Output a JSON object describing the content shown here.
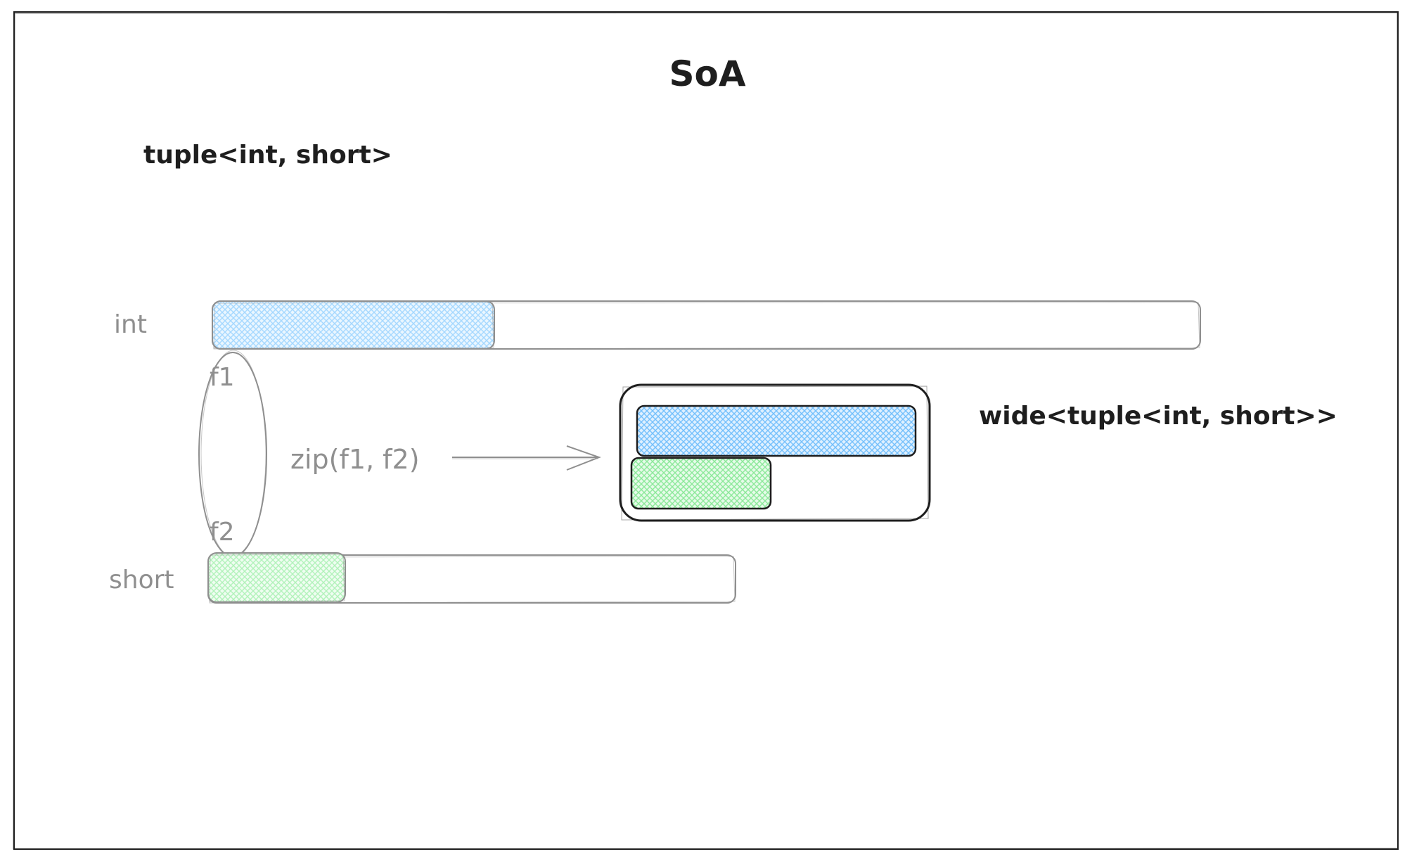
{
  "title": "SoA",
  "tuple_type_label": "tuple<int, short>",
  "int_row": {
    "label": "int",
    "field_label": "f1",
    "fill_color": "#a5d8ff"
  },
  "short_row": {
    "label": "short",
    "field_label": "f2",
    "fill_color": "#b2f2bb"
  },
  "zip_label": "zip(f1, f2)",
  "wide_label": "wide<tuple<int, short>>",
  "colors": {
    "ink": "#1e1e1e",
    "muted_ink": "#8f8f8f",
    "int_fill": "#a5d8ff",
    "short_fill": "#b2f2bb"
  }
}
